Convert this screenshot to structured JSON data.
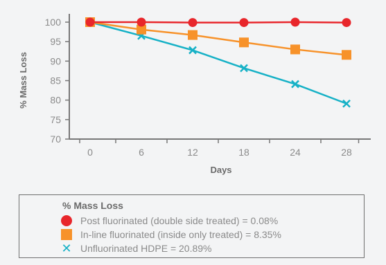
{
  "chart_data": {
    "type": "line",
    "xlabel": "Days",
    "ylabel": "% Mass Loss",
    "categories": [
      "0",
      "6",
      "12",
      "18",
      "24",
      "28"
    ],
    "ylim": [
      70,
      100
    ],
    "yticks": [
      70,
      75,
      80,
      85,
      90,
      95,
      100
    ],
    "grid": false,
    "legend_placement": "bottom",
    "series": [
      {
        "name": "Post fluorinated (double side treated) = 0.08%",
        "marker": "circle",
        "color": "#e8262b",
        "values": [
          100,
          100,
          99.9,
          99.9,
          100,
          99.9
        ]
      },
      {
        "name": "In-line fluorinated (inside only treated) = 8.35%",
        "marker": "square",
        "color": "#f7922a",
        "values": [
          100,
          98.1,
          96.7,
          94.8,
          93.0,
          91.6
        ]
      },
      {
        "name": "Unfluorinated HDPE = 20.89%",
        "marker": "x",
        "color": "#16b1c6",
        "values": [
          100,
          96.5,
          92.8,
          88.2,
          84.1,
          79.1
        ]
      }
    ]
  },
  "legend": {
    "title": "% Mass Loss",
    "items": [
      {
        "label": "Post fluorinated (double side treated) = 0.08%",
        "icon": "circle"
      },
      {
        "label": "In-line fluorinated (inside only treated) = 8.35%",
        "icon": "square"
      },
      {
        "label": "Unfluorinated HDPE = 20.89%",
        "icon": "x"
      }
    ]
  }
}
